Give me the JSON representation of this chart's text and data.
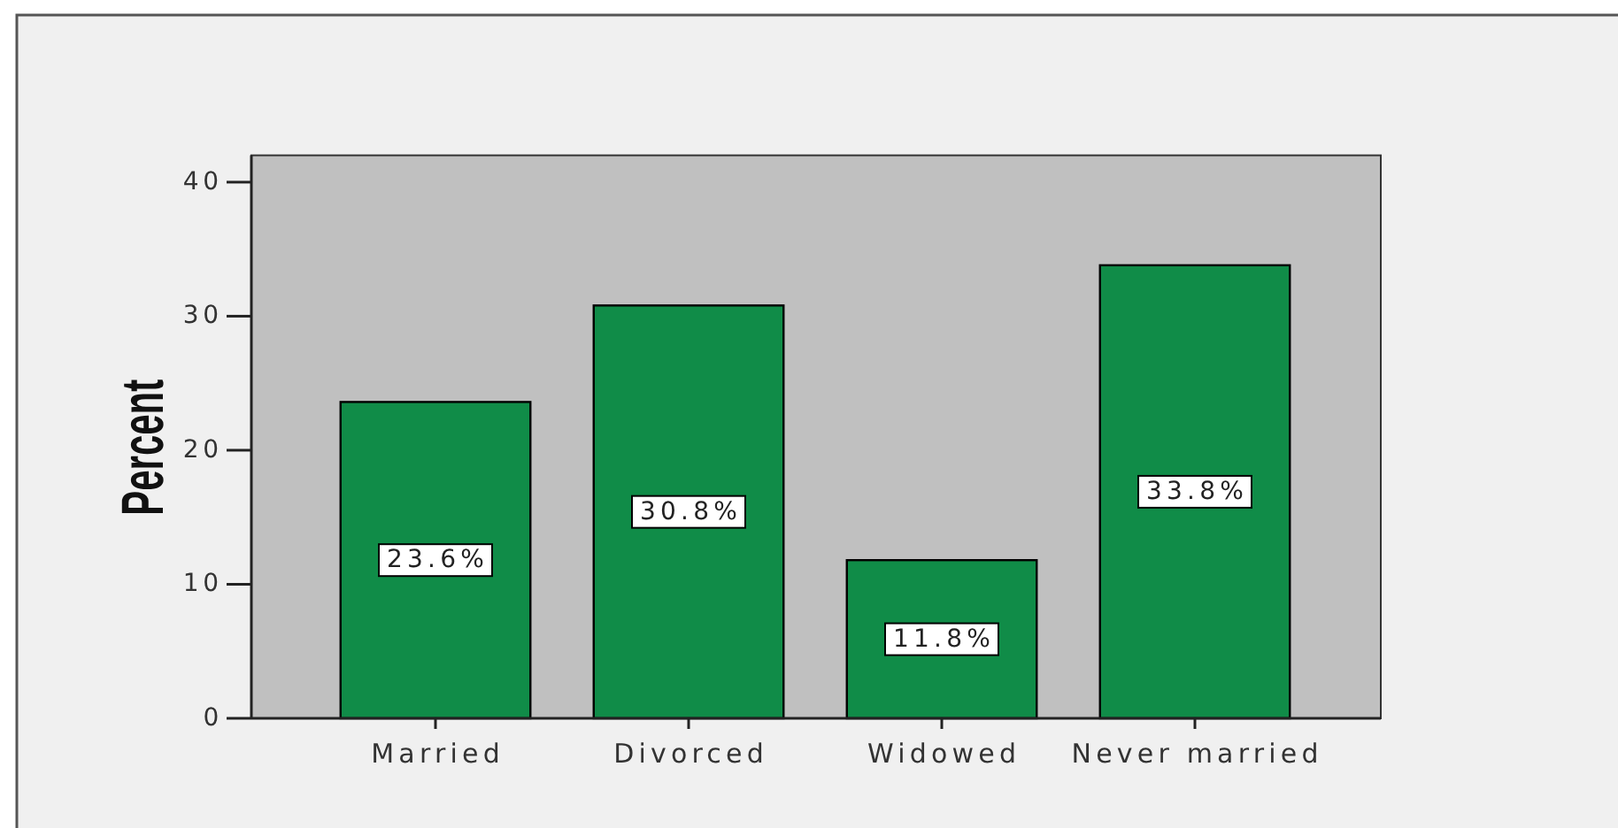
{
  "chart_data": {
    "type": "bar",
    "ylabel": "Percent",
    "categories": [
      "Married",
      "Divorced",
      "Widowed",
      "Never married"
    ],
    "values": [
      23.6,
      30.8,
      11.8,
      33.8
    ],
    "value_labels": [
      "23.6%",
      "30.8%",
      "11.8%",
      "33.8%"
    ],
    "color": "#108c48",
    "ylim": [
      0,
      42
    ],
    "yticks": [
      0,
      10,
      20,
      30,
      40
    ]
  }
}
